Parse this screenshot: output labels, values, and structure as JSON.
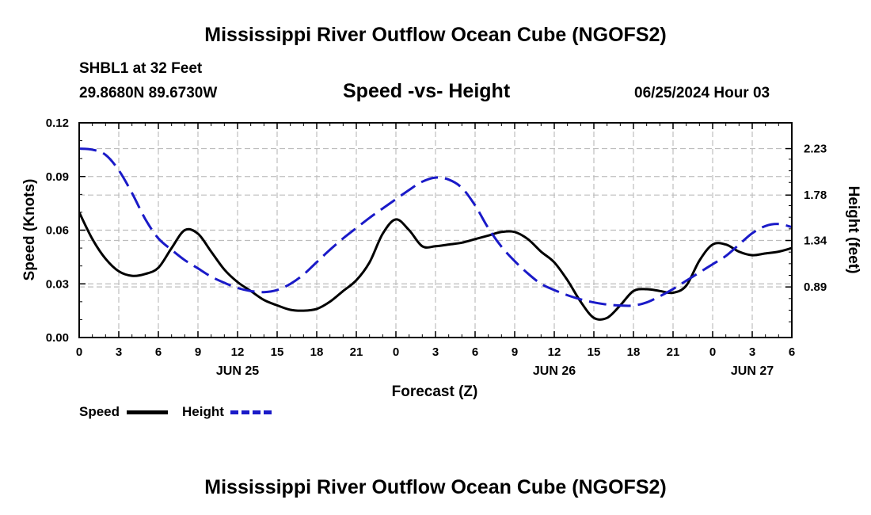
{
  "page": {
    "title": "Mississippi River Outflow Ocean Cube (NGOFS2)",
    "station": "SHBL1 at 32 Feet",
    "coords": "29.8680N  89.6730W",
    "plot_title": "Speed -vs- Height",
    "date": "06/25/2024 Hour 03",
    "footer_title": "Mississippi River Outflow Ocean Cube (NGOFS2)"
  },
  "legend": {
    "speed_label": "Speed",
    "height_label": "Height"
  },
  "chart_data": {
    "type": "line",
    "title": "Speed -vs- Height",
    "xlabel": "Forecast (Z)",
    "ylabel": "Speed (Knots)",
    "y2label": "Height (feet)",
    "xlim": [
      0,
      54
    ],
    "ylim": [
      0,
      0.12
    ],
    "y2lim": [
      0.4,
      2.48
    ],
    "x_ticks": [
      0,
      3,
      6,
      9,
      12,
      15,
      18,
      21,
      24,
      27,
      30,
      33,
      36,
      39,
      42,
      45,
      48,
      51,
      54
    ],
    "x_tick_labels": [
      "0",
      "3",
      "6",
      "9",
      "12",
      "15",
      "18",
      "21",
      "0",
      "3",
      "6",
      "9",
      "12",
      "15",
      "18",
      "21",
      "0",
      "3",
      "6"
    ],
    "y_ticks": [
      0.0,
      0.03,
      0.06,
      0.09,
      0.12
    ],
    "y_tick_labels": [
      "0.00",
      "0.03",
      "0.06",
      "0.09",
      "0.12"
    ],
    "y2_ticks": [
      0.89,
      1.34,
      1.78,
      2.23
    ],
    "y2_tick_labels": [
      "0.89",
      "1.34",
      "1.78",
      "2.23"
    ],
    "day_labels": [
      {
        "x": 12,
        "label": "JUN 25"
      },
      {
        "x": 36,
        "label": "JUN 26"
      },
      {
        "x": 51,
        "label": "JUN 27"
      }
    ],
    "grid": true,
    "legend_position": "bottom-left",
    "series": [
      {
        "name": "Speed",
        "axis": "left",
        "color": "#000000",
        "dash": "solid",
        "x": [
          0,
          1,
          2,
          3,
          4,
          5,
          6,
          7,
          8,
          9,
          10,
          11,
          12,
          13,
          14,
          15,
          16,
          17,
          18,
          19,
          20,
          21,
          22,
          23,
          24,
          25,
          26,
          27,
          28,
          29,
          30,
          31,
          32,
          33,
          34,
          35,
          36,
          37,
          38,
          39,
          40,
          41,
          42,
          43,
          44,
          45,
          46,
          47,
          48,
          49,
          50,
          51,
          52,
          53,
          54
        ],
        "values": [
          0.07,
          0.055,
          0.044,
          0.037,
          0.0345,
          0.0355,
          0.039,
          0.05,
          0.06,
          0.058,
          0.048,
          0.038,
          0.031,
          0.026,
          0.021,
          0.018,
          0.0155,
          0.015,
          0.016,
          0.02,
          0.026,
          0.032,
          0.042,
          0.058,
          0.066,
          0.06,
          0.051,
          0.051,
          0.052,
          0.053,
          0.055,
          0.057,
          0.059,
          0.059,
          0.055,
          0.048,
          0.042,
          0.032,
          0.02,
          0.011,
          0.011,
          0.018,
          0.026,
          0.027,
          0.026,
          0.025,
          0.029,
          0.043,
          0.052,
          0.052,
          0.048,
          0.046,
          0.047,
          0.048,
          0.05
        ]
      },
      {
        "name": "Height",
        "axis": "right",
        "color": "#1a1ac8",
        "dash": "dashed",
        "x": [
          0,
          1,
          2,
          3,
          4,
          5,
          6,
          7,
          8,
          9,
          10,
          11,
          12,
          13,
          14,
          15,
          16,
          17,
          18,
          19,
          20,
          21,
          22,
          23,
          24,
          25,
          26,
          27,
          28,
          29,
          30,
          31,
          32,
          33,
          34,
          35,
          36,
          37,
          38,
          39,
          40,
          41,
          42,
          43,
          44,
          45,
          46,
          47,
          48,
          49,
          50,
          51,
          52,
          53,
          54
        ],
        "values": [
          2.23,
          2.22,
          2.17,
          2.02,
          1.8,
          1.55,
          1.36,
          1.25,
          1.15,
          1.07,
          0.99,
          0.93,
          0.88,
          0.85,
          0.84,
          0.86,
          0.92,
          1.01,
          1.13,
          1.25,
          1.36,
          1.46,
          1.56,
          1.65,
          1.74,
          1.83,
          1.91,
          1.95,
          1.93,
          1.85,
          1.68,
          1.46,
          1.28,
          1.14,
          1.02,
          0.92,
          0.86,
          0.81,
          0.77,
          0.74,
          0.72,
          0.71,
          0.71,
          0.74,
          0.8,
          0.87,
          0.95,
          1.03,
          1.11,
          1.19,
          1.3,
          1.41,
          1.48,
          1.5,
          1.47
        ]
      }
    ]
  }
}
